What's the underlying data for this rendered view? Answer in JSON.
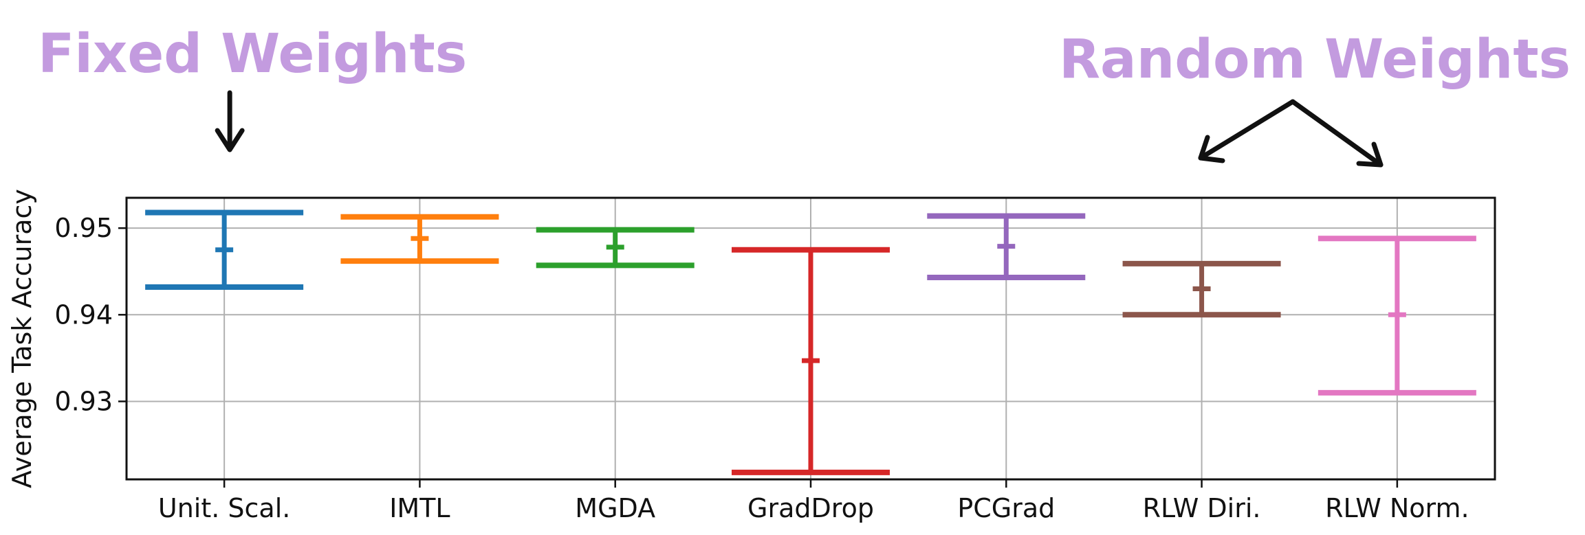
{
  "chart_data": {
    "type": "errorbar",
    "ylabel": "Average Task Accuracy",
    "xlabel": "",
    "ylim": [
      0.921,
      0.9535
    ],
    "yticks": [
      0.93,
      0.94,
      0.95
    ],
    "grid": true,
    "categories": [
      "Unit. Scal.",
      "IMTL",
      "MGDA",
      "GradDrop",
      "PCGrad",
      "RLW Diri.",
      "RLW Norm."
    ],
    "series": [
      {
        "mean": 0.9475,
        "low": 0.9432,
        "high": 0.9518,
        "color": "#1f77b4"
      },
      {
        "mean": 0.9488,
        "low": 0.9462,
        "high": 0.9513,
        "color": "#ff7f0e"
      },
      {
        "mean": 0.9478,
        "low": 0.9457,
        "high": 0.9498,
        "color": "#2ca02c"
      },
      {
        "mean": 0.9347,
        "low": 0.9218,
        "high": 0.9475,
        "color": "#d62728"
      },
      {
        "mean": 0.9479,
        "low": 0.9443,
        "high": 0.9514,
        "color": "#9467bd"
      },
      {
        "mean": 0.943,
        "low": 0.94,
        "high": 0.9459,
        "color": "#8c564b"
      },
      {
        "mean": 0.94,
        "low": 0.931,
        "high": 0.9488,
        "color": "#e377c2"
      }
    ],
    "annotations": [
      {
        "text": "Fixed Weights",
        "color": "#c39bdf",
        "points_to": [
          "Unit. Scal."
        ]
      },
      {
        "text": "Random Weights",
        "color": "#c39bdf",
        "points_to": [
          "RLW Diri.",
          "RLW Norm."
        ]
      }
    ]
  }
}
